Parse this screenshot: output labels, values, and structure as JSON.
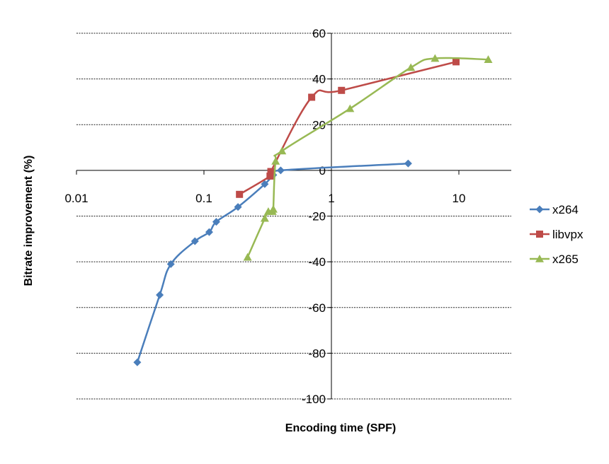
{
  "chart_data": {
    "type": "scatter",
    "title": "",
    "xlabel": "Encoding time (SPF)",
    "ylabel": "Bitrate improvement (%)",
    "xscale": "log",
    "xlim": [
      0.01,
      25
    ],
    "ylim": [
      -100,
      60
    ],
    "x_ticks": [
      0.01,
      0.1,
      1,
      10
    ],
    "x_tick_labels": [
      "0.01",
      "0.1",
      "1",
      "10"
    ],
    "y_ticks": [
      -100,
      -80,
      -60,
      -40,
      -20,
      0,
      20,
      40,
      60
    ],
    "y_tick_labels": [
      "-100",
      "-80",
      "-60",
      "-40",
      "-20",
      "0",
      "20",
      "40",
      "60"
    ],
    "grid": "horizontal dashed",
    "legend_position": "right",
    "series": [
      {
        "name": "x264",
        "color": "#4a7ebb",
        "marker": "diamond",
        "x": [
          0.03,
          0.045,
          0.055,
          0.085,
          0.11,
          0.125,
          0.185,
          0.3,
          0.35,
          0.4,
          4.0
        ],
        "y": [
          -84,
          -54.5,
          -41,
          -31,
          -27,
          -22.5,
          -16,
          -6,
          -2,
          0,
          3
        ]
      },
      {
        "name": "libvpx",
        "color": "#be4b48",
        "marker": "square",
        "x": [
          0.19,
          0.33,
          0.335,
          0.7,
          1.2,
          9.5
        ],
        "y": [
          -10.5,
          -2.5,
          -0.5,
          32,
          35,
          47.5
        ]
      },
      {
        "name": "x265",
        "color": "#98b954",
        "marker": "triangle",
        "x": [
          0.22,
          0.3,
          0.32,
          0.345,
          0.35,
          0.365,
          0.41,
          1.4,
          4.2,
          6.5,
          17.0
        ],
        "y": [
          -38,
          -21,
          -18,
          -18,
          -17,
          4,
          8.5,
          27,
          45,
          49,
          48.5
        ]
      }
    ]
  }
}
